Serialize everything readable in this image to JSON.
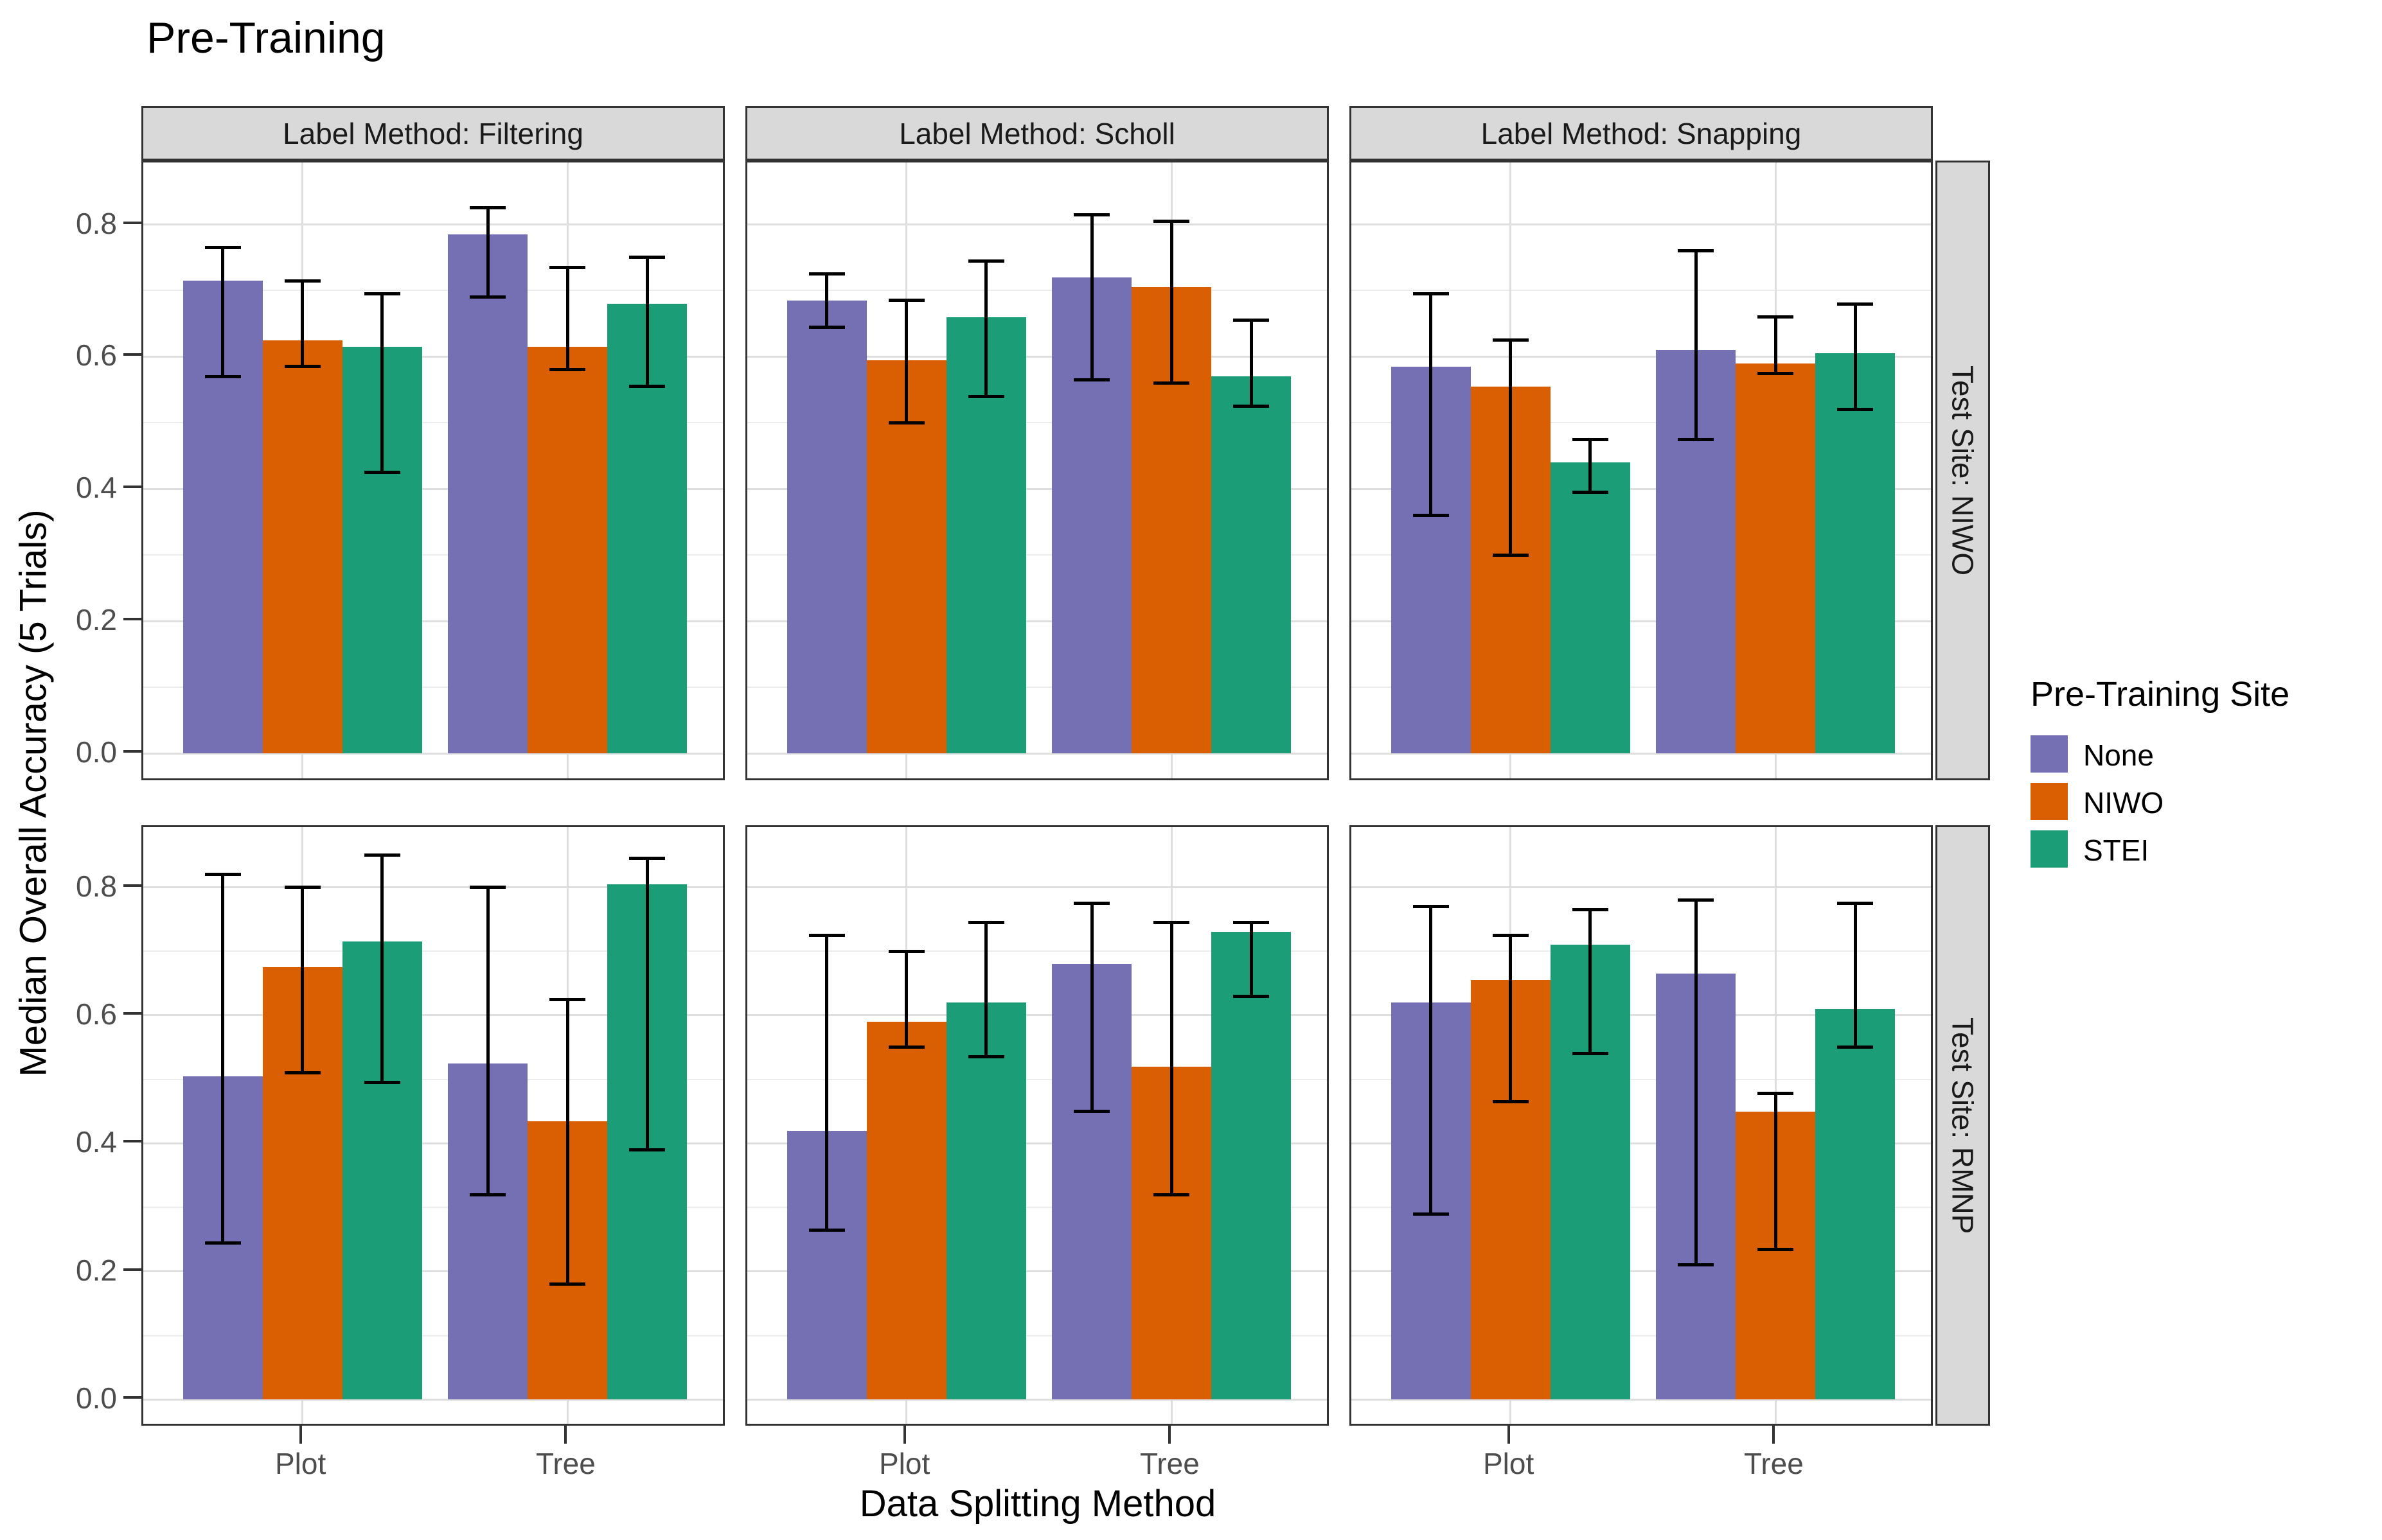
{
  "title": "Pre-Training",
  "style": {
    "strip_bg": "#d9d9d9",
    "panel_border": "#333333",
    "grid_major": "#dedede",
    "grid_minor": "#ececec",
    "tick_label_color": "#4d4d4d",
    "error_bar_color": "#000000"
  },
  "chart_data": {
    "type": "bar",
    "title": "Pre-Training",
    "xlabel": "Data Splitting Method",
    "ylabel": "Median Overall Accuracy (5 Trials)",
    "categories": [
      "Plot",
      "Tree"
    ],
    "series_names": [
      "None",
      "NIWO",
      "STEI"
    ],
    "colors": {
      "None": "#7570B3",
      "NIWO": "#D95F02",
      "STEI": "#1B9E77"
    },
    "legend": {
      "title": "Pre-Training Site",
      "position": "right",
      "entries": [
        {
          "label": "None",
          "color": "#7570B3"
        },
        {
          "label": "NIWO",
          "color": "#D95F02"
        },
        {
          "label": "STEI",
          "color": "#1B9E77"
        }
      ]
    },
    "facets": {
      "columns": [
        "Label Method: Filtering",
        "Label Method: Scholl",
        "Label Method: Snapping"
      ],
      "rows": [
        "Test Site: NIWO",
        "Test Site: RMNP"
      ]
    },
    "y_ticks": [
      {
        "label": "0.0",
        "value": 0.0
      },
      {
        "label": "0.2",
        "value": 0.2
      },
      {
        "label": "0.4",
        "value": 0.4
      },
      {
        "label": "0.6",
        "value": 0.6
      },
      {
        "label": "0.8",
        "value": 0.8
      }
    ],
    "y_minor_ticks": [
      0.1,
      0.3,
      0.5,
      0.7
    ],
    "ylim": [
      -0.0437,
      0.8937
    ],
    "grid": {
      "major": true,
      "minor": true,
      "vertical_at_categories": true
    },
    "error_bars": true,
    "panels": [
      {
        "row": "Test Site: NIWO",
        "col": "Label Method: Filtering",
        "groups": [
          {
            "category": "Plot",
            "bars": [
              {
                "series": "None",
                "value": 0.715,
                "err": [
                  0.57,
                  0.765
                ]
              },
              {
                "series": "NIWO",
                "value": 0.625,
                "err": [
                  0.585,
                  0.715
                ]
              },
              {
                "series": "STEI",
                "value": 0.615,
                "err": [
                  0.425,
                  0.695
                ]
              }
            ]
          },
          {
            "category": "Tree",
            "bars": [
              {
                "series": "None",
                "value": 0.785,
                "err": [
                  0.69,
                  0.825
                ]
              },
              {
                "series": "NIWO",
                "value": 0.615,
                "err": [
                  0.58,
                  0.735
                ]
              },
              {
                "series": "STEI",
                "value": 0.68,
                "err": [
                  0.555,
                  0.75
                ]
              }
            ]
          }
        ]
      },
      {
        "row": "Test Site: NIWO",
        "col": "Label Method: Scholl",
        "groups": [
          {
            "category": "Plot",
            "bars": [
              {
                "series": "None",
                "value": 0.685,
                "err": [
                  0.645,
                  0.725
                ]
              },
              {
                "series": "NIWO",
                "value": 0.595,
                "err": [
                  0.5,
                  0.685
                ]
              },
              {
                "series": "STEI",
                "value": 0.66,
                "err": [
                  0.54,
                  0.745
                ]
              }
            ]
          },
          {
            "category": "Tree",
            "bars": [
              {
                "series": "None",
                "value": 0.72,
                "err": [
                  0.565,
                  0.815
                ]
              },
              {
                "series": "NIWO",
                "value": 0.705,
                "err": [
                  0.56,
                  0.805
                ]
              },
              {
                "series": "STEI",
                "value": 0.57,
                "err": [
                  0.525,
                  0.655
                ]
              }
            ]
          }
        ]
      },
      {
        "row": "Test Site: NIWO",
        "col": "Label Method: Snapping",
        "groups": [
          {
            "category": "Plot",
            "bars": [
              {
                "series": "None",
                "value": 0.585,
                "err": [
                  0.36,
                  0.695
                ]
              },
              {
                "series": "NIWO",
                "value": 0.555,
                "err": [
                  0.3,
                  0.625
                ]
              },
              {
                "series": "STEI",
                "value": 0.44,
                "err": [
                  0.395,
                  0.475
                ]
              }
            ]
          },
          {
            "category": "Tree",
            "bars": [
              {
                "series": "None",
                "value": 0.61,
                "err": [
                  0.475,
                  0.76
                ]
              },
              {
                "series": "NIWO",
                "value": 0.59,
                "err": [
                  0.575,
                  0.66
                ]
              },
              {
                "series": "STEI",
                "value": 0.605,
                "err": [
                  0.52,
                  0.68
                ]
              }
            ]
          }
        ]
      },
      {
        "row": "Test Site: RMNP",
        "col": "Label Method: Filtering",
        "groups": [
          {
            "category": "Plot",
            "bars": [
              {
                "series": "None",
                "value": 0.505,
                "err": [
                  0.245,
                  0.82
                ]
              },
              {
                "series": "NIWO",
                "value": 0.675,
                "err": [
                  0.51,
                  0.8
                ]
              },
              {
                "series": "STEI",
                "value": 0.715,
                "err": [
                  0.495,
                  0.85
                ]
              }
            ]
          },
          {
            "category": "Tree",
            "bars": [
              {
                "series": "None",
                "value": 0.525,
                "err": [
                  0.32,
                  0.8
                ]
              },
              {
                "series": "NIWO",
                "value": 0.435,
                "err": [
                  0.18,
                  0.625
                ]
              },
              {
                "series": "STEI",
                "value": 0.805,
                "err": [
                  0.39,
                  0.845
                ]
              }
            ]
          }
        ]
      },
      {
        "row": "Test Site: RMNP",
        "col": "Label Method: Scholl",
        "groups": [
          {
            "category": "Plot",
            "bars": [
              {
                "series": "None",
                "value": 0.42,
                "err": [
                  0.265,
                  0.725
                ]
              },
              {
                "series": "NIWO",
                "value": 0.59,
                "err": [
                  0.55,
                  0.7
                ]
              },
              {
                "series": "STEI",
                "value": 0.62,
                "err": [
                  0.535,
                  0.745
                ]
              }
            ]
          },
          {
            "category": "Tree",
            "bars": [
              {
                "series": "None",
                "value": 0.68,
                "err": [
                  0.45,
                  0.775
                ]
              },
              {
                "series": "NIWO",
                "value": 0.52,
                "err": [
                  0.32,
                  0.745
                ]
              },
              {
                "series": "STEI",
                "value": 0.73,
                "err": [
                  0.63,
                  0.745
                ]
              }
            ]
          }
        ]
      },
      {
        "row": "Test Site: RMNP",
        "col": "Label Method: Snapping",
        "groups": [
          {
            "category": "Plot",
            "bars": [
              {
                "series": "None",
                "value": 0.62,
                "err": [
                  0.29,
                  0.77
                ]
              },
              {
                "series": "NIWO",
                "value": 0.655,
                "err": [
                  0.465,
                  0.725
                ]
              },
              {
                "series": "STEI",
                "value": 0.71,
                "err": [
                  0.54,
                  0.765
                ]
              }
            ]
          },
          {
            "category": "Tree",
            "bars": [
              {
                "series": "None",
                "value": 0.665,
                "err": [
                  0.21,
                  0.78
                ]
              },
              {
                "series": "NIWO",
                "value": 0.45,
                "err": [
                  0.235,
                  0.478
                ]
              },
              {
                "series": "STEI",
                "value": 0.61,
                "err": [
                  0.55,
                  0.775
                ]
              }
            ]
          }
        ]
      }
    ]
  }
}
